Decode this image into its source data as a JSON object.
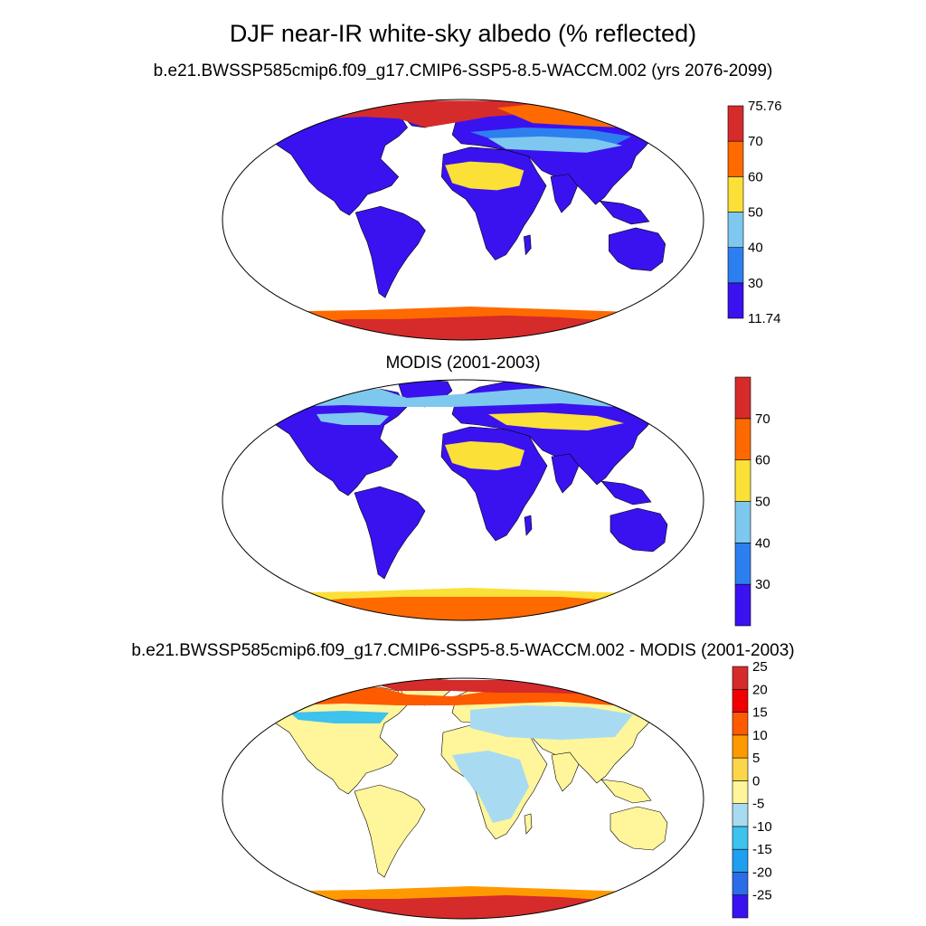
{
  "figure": {
    "title": "DJF near-IR white-sky albedo (% reflected)"
  },
  "panels": [
    {
      "id": "model",
      "title": "b.e21.BWSSP585cmip6.f09_g17.CMIP6-SSP5-8.5-WACCM.002 (yrs 2076-2099)",
      "colorbar": {
        "colors": [
          "#3a12f0",
          "#2d7ff0",
          "#7ec8ef",
          "#fbe038",
          "#fe6a00",
          "#d62b2b"
        ],
        "labels": [
          "11.74",
          "30",
          "40",
          "50",
          "60",
          "70",
          "75.76"
        ],
        "label_positions": "boundaries"
      }
    },
    {
      "id": "obs",
      "title": "MODIS (2001-2003)",
      "colorbar": {
        "colors": [
          "#3a12f0",
          "#2d7ff0",
          "#7ec8ef",
          "#fbe038",
          "#fe6a00",
          "#d62b2b"
        ],
        "labels": [
          "30",
          "40",
          "50",
          "60",
          "70"
        ],
        "label_positions": "interior"
      }
    },
    {
      "id": "diff",
      "title": "b.e21.BWSSP585cmip6.f09_g17.CMIP6-SSP5-8.5-WACCM.002 - MODIS (2001-2003)",
      "colorbar": {
        "colors": [
          "#3a12f0",
          "#2d6ce8",
          "#1f9ff0",
          "#3ec2ee",
          "#a8dbf2",
          "#fff59a",
          "#fcd64a",
          "#fe9a00",
          "#fe5a00",
          "#f00000",
          "#d62b2b"
        ],
        "labels": [
          "-25",
          "-20",
          "-15",
          "-10",
          "-5",
          "0",
          "5",
          "10",
          "15",
          "20",
          "25"
        ],
        "label_positions": "interior"
      }
    }
  ],
  "map_colors": {
    "model": {
      "land": "#3a12f0",
      "arctic": "#d62b2b",
      "arctic2": "#fe6a00",
      "midlat": "#7ec8ef",
      "midlat2": "#2d7ff0",
      "desert": "#fbe038",
      "antarctica": "#d62b2b",
      "antarctica2": "#fe6a00"
    },
    "obs": {
      "land": "#3a12f0",
      "arctic": "#7ec8ef",
      "arctic2": "#2d7ff0",
      "midlat": "#fbe038",
      "midlat2": "#7ec8ef",
      "desert": "#fbe038",
      "antarctica": "#fe6a00",
      "antarctica2": "#fbe038"
    },
    "diff": {
      "land": "#fff59a",
      "arctic": "#d62b2b",
      "arctic2": "#fe5a00",
      "midlat": "#a8dbf2",
      "midlat2": "#3ec2ee",
      "desert": "#a8dbf2",
      "antarctica": "#d62b2b",
      "antarctica2": "#fe9a00"
    }
  }
}
